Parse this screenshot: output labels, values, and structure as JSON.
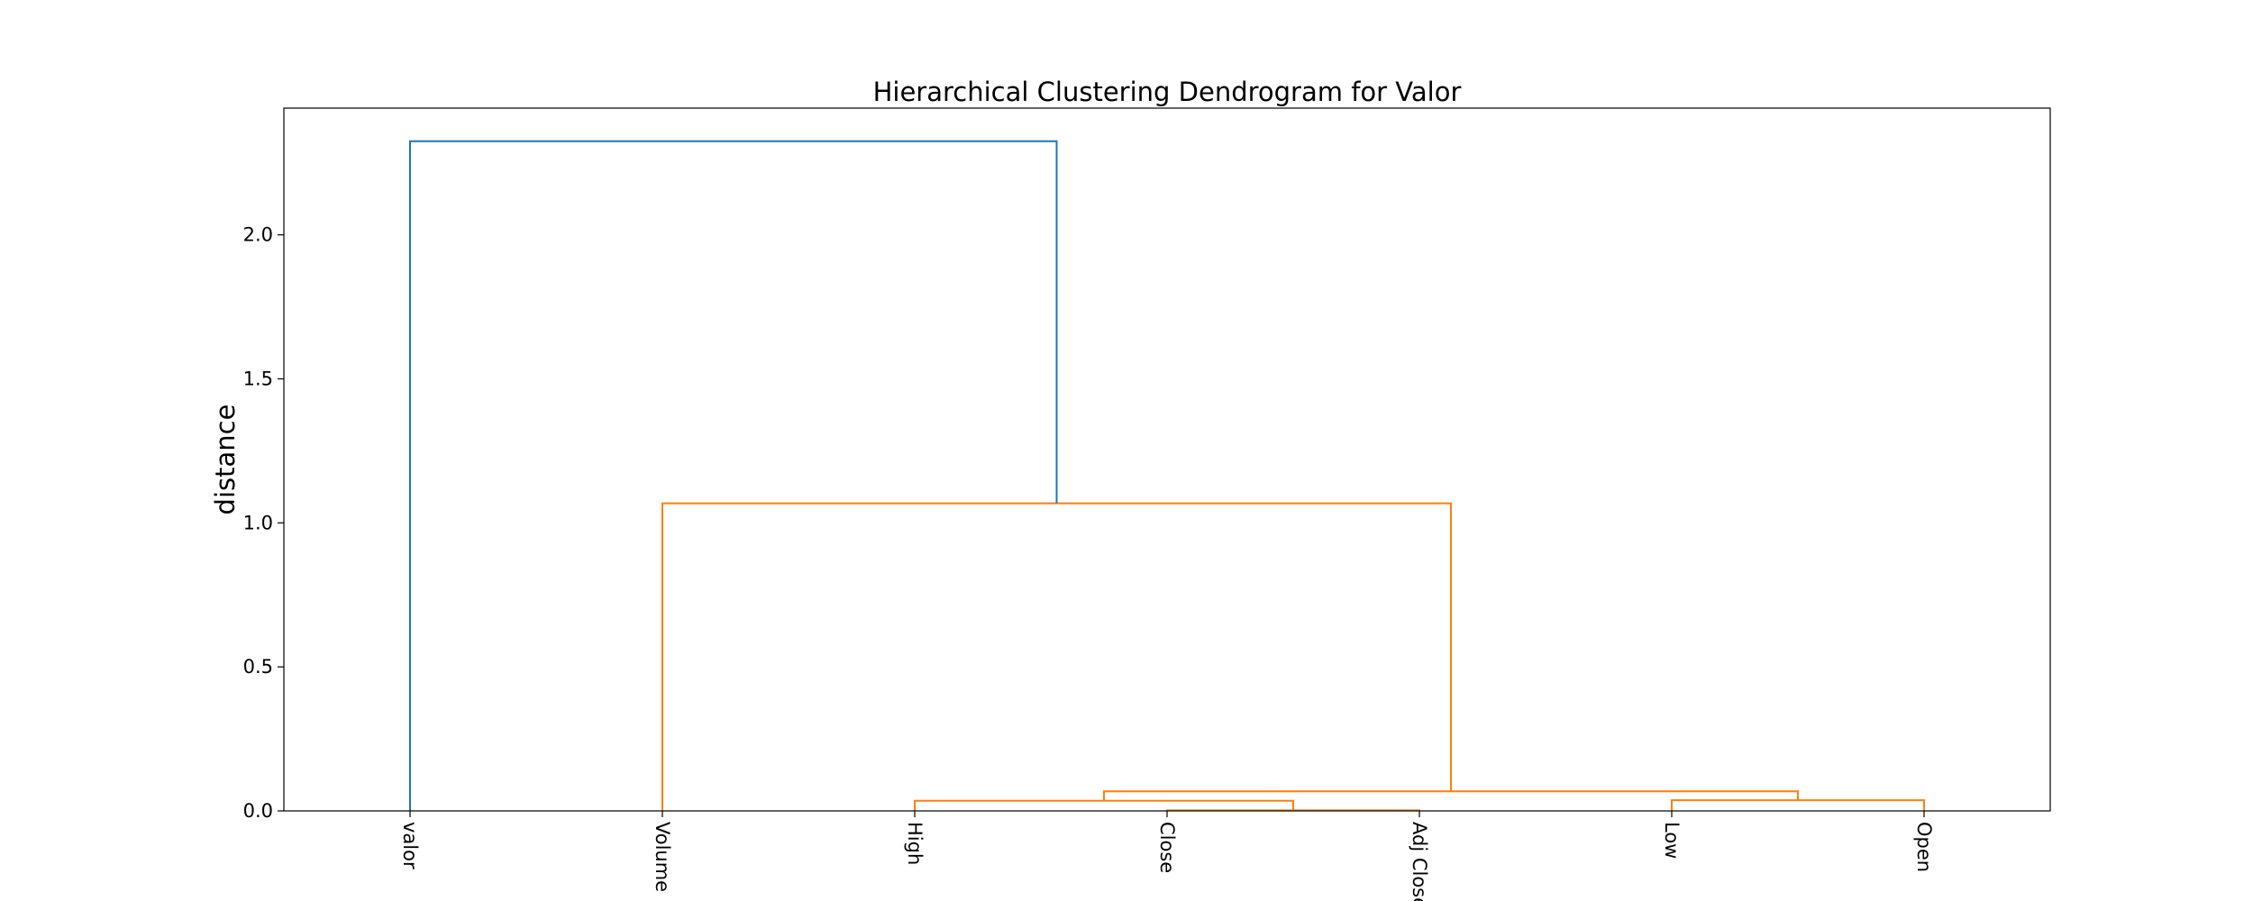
{
  "chart_data": {
    "type": "dendrogram",
    "title": "Hierarchical Clustering Dendrogram for Valor",
    "xlabel": "",
    "ylabel": "distance",
    "ylim": [
      0,
      2.44
    ],
    "yticks": [
      0.0,
      0.5,
      1.0,
      1.5,
      2.0
    ],
    "ytick_labels": [
      "0.0",
      "0.5",
      "1.0",
      "1.5",
      "2.0"
    ],
    "leaves": [
      "valor",
      "Volume",
      "High",
      "Close",
      "Adj Close",
      "Low",
      "Open"
    ],
    "grid": false,
    "colors": {
      "above_threshold": "#1f77b4",
      "cluster": "#ff7f0e"
    },
    "merges": [
      {
        "left": "Close",
        "right": "Adj Close",
        "height": 0.002,
        "color": "#ff7f0e"
      },
      {
        "left": "High",
        "right": "Close + Adj Close",
        "height": 0.035,
        "color": "#ff7f0e"
      },
      {
        "left": "Low",
        "right": "Open",
        "height": 0.037,
        "color": "#ff7f0e"
      },
      {
        "left": "High + Close + Adj Close",
        "right": "Low + Open",
        "height": 0.068,
        "color": "#ff7f0e"
      },
      {
        "left": "Volume",
        "right": "High + Close + Adj Close + Low + Open",
        "height": 1.068,
        "color": "#ff7f0e"
      },
      {
        "left": "valor",
        "right": "Volume + High + Close + Adj Close + Low + Open",
        "height": 2.325,
        "color": "#1f77b4"
      }
    ]
  }
}
